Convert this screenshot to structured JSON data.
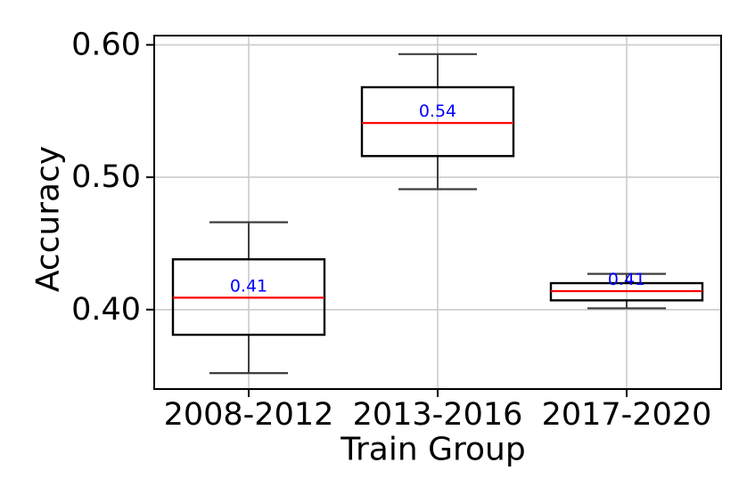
{
  "chart_data": {
    "type": "boxplot",
    "title": "",
    "xlabel": "Train Group",
    "ylabel": "Accuracy",
    "categories": [
      "2008-2012",
      "2013-2016",
      "2017-2020"
    ],
    "series": [
      {
        "category": "2008-2012",
        "whisker_low": 0.352,
        "q1": 0.381,
        "median": 0.409,
        "q3": 0.438,
        "whisker_high": 0.466,
        "median_label": "0.41"
      },
      {
        "category": "2013-2016",
        "whisker_low": 0.491,
        "q1": 0.516,
        "median": 0.541,
        "q3": 0.568,
        "whisker_high": 0.593,
        "median_label": "0.54"
      },
      {
        "category": "2017-2020",
        "whisker_low": 0.401,
        "q1": 0.407,
        "median": 0.414,
        "q3": 0.42,
        "whisker_high": 0.427,
        "median_label": "0.41"
      }
    ],
    "yticks": [
      0.4,
      0.5,
      0.6
    ],
    "ytick_labels": [
      "0.40",
      "0.50",
      "0.60"
    ],
    "ylim": [
      0.34,
      0.607
    ],
    "grid": true,
    "legend_position": "none",
    "colors": {
      "box_edge": "#000000",
      "whisker": "#3f3f3f",
      "median": "#ff0000",
      "median_label": "#0000ff",
      "grid": "#cccccc",
      "tick": "#000000",
      "spine": "#000000",
      "background": "#ffffff"
    }
  }
}
